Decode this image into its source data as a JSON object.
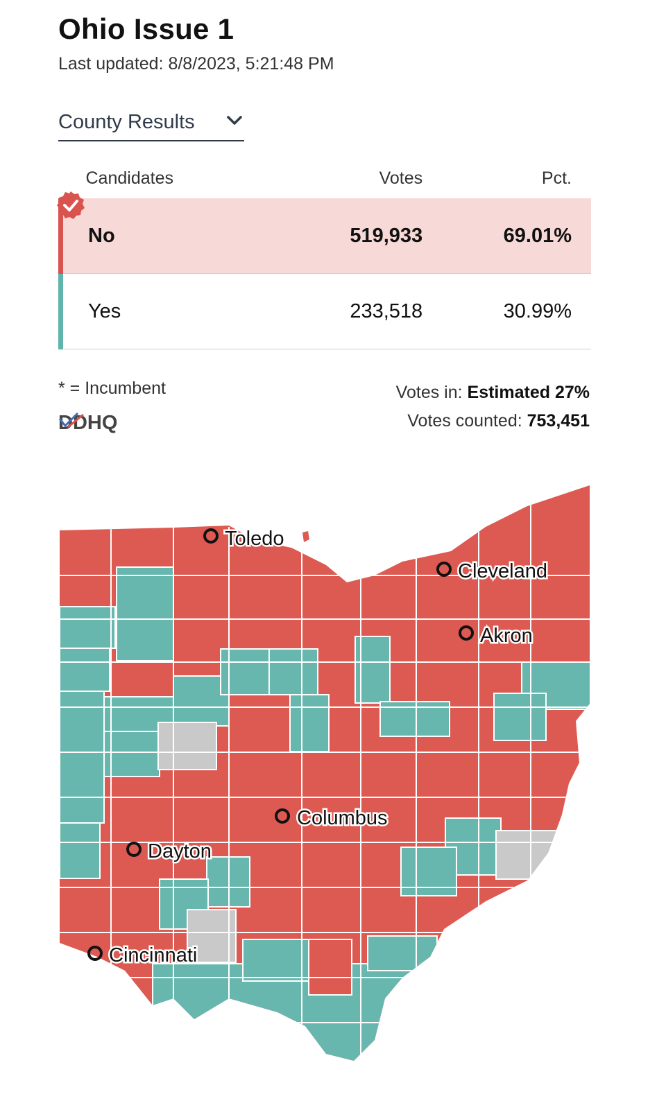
{
  "header": {
    "title": "Ohio Issue 1",
    "last_updated": "Last updated: 8/8/2023, 5:21:48 PM"
  },
  "view_selector": {
    "label": "County Results"
  },
  "results_table": {
    "columns": [
      "Candidates",
      "Votes",
      "Pct."
    ],
    "rows": [
      {
        "name": "No",
        "votes": "519,933",
        "pct": "69.01%",
        "winner": true,
        "color": "#d9534f"
      },
      {
        "name": "Yes",
        "votes": "233,518",
        "pct": "30.99%",
        "winner": false,
        "color": "#5fb5ab"
      }
    ]
  },
  "footer": {
    "incumbent_note": "* = Incumbent",
    "source_logo": "DDHQ",
    "votes_in_label": "Votes in:",
    "votes_in_value": "Estimated 27%",
    "votes_counted_label": "Votes counted:",
    "votes_counted_value": "753,451"
  },
  "map": {
    "colors": {
      "no": "#dd5a52",
      "yes": "#68b7ae",
      "no_data": "#c9c9c9",
      "border": "#ffffff"
    },
    "cities": [
      "Toledo",
      "Cleveland",
      "Akron",
      "Columbus",
      "Dayton",
      "Cincinnati"
    ]
  }
}
